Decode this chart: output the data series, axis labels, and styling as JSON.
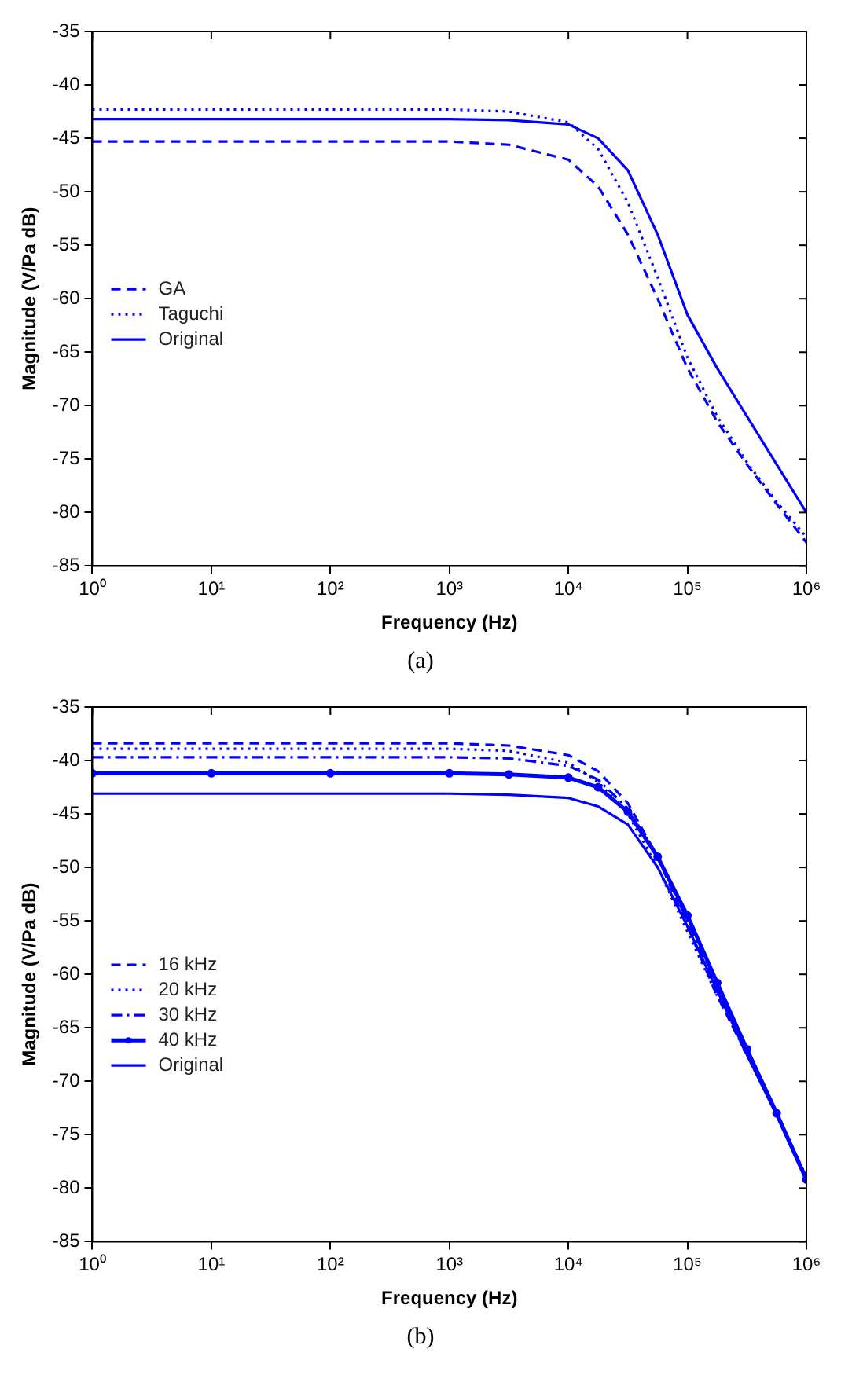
{
  "chart_data": [
    {
      "type": "line",
      "xlabel": "Frequency (Hz)",
      "ylabel": "Magnitude (V/Pa dB)",
      "log": "x",
      "legend": "left",
      "annotations": [
        "(a)"
      ],
      "xlim": [
        1,
        1000000
      ],
      "xticks": [
        {
          "value": 1,
          "label": "10⁰"
        },
        {
          "value": 10,
          "label": "10¹"
        },
        {
          "value": 100,
          "label": "10²"
        },
        {
          "value": 1000,
          "label": "10³"
        },
        {
          "value": 10000,
          "label": "10⁴"
        },
        {
          "value": 100000,
          "label": "10⁵"
        },
        {
          "value": 1000000,
          "label": "10⁶"
        }
      ],
      "ylim": [
        -85,
        -35
      ],
      "yticks": [
        -85,
        -80,
        -75,
        -70,
        -65,
        -60,
        -55,
        -50,
        -45,
        -40,
        -35
      ],
      "x": [
        1,
        10,
        100,
        1000,
        3162,
        10000,
        17783,
        31623,
        56234,
        100000,
        177828,
        316228,
        562341,
        1000000
      ],
      "series": [
        {
          "name": "GA",
          "color": "#0000ff",
          "line_style": "dashed",
          "values": [
            -45.3,
            -45.3,
            -45.3,
            -45.3,
            -45.6,
            -47,
            -49.5,
            -54,
            -60,
            -66.5,
            -71.5,
            -75.5,
            -79.2,
            -82.8
          ]
        },
        {
          "name": "Taguchi",
          "color": "#0000ff",
          "line_style": "dotted",
          "values": [
            -42.3,
            -42.3,
            -42.3,
            -42.3,
            -42.5,
            -43.5,
            -46,
            -51,
            -58,
            -65.5,
            -71,
            -75.3,
            -79,
            -82.3
          ]
        },
        {
          "name": "Original",
          "color": "#0000ff",
          "line_style": "solid",
          "values": [
            -43.2,
            -43.2,
            -43.2,
            -43.2,
            -43.3,
            -43.7,
            -45,
            -48,
            -54,
            -61.5,
            -66.5,
            -71,
            -75.5,
            -80
          ]
        }
      ]
    },
    {
      "type": "line",
      "xlabel": "Frequency (Hz)",
      "ylabel": "Magnitude (V/Pa dB)",
      "log": "x",
      "legend": "left",
      "annotations": [
        "(b)"
      ],
      "xlim": [
        1,
        1000000
      ],
      "xticks": [
        {
          "value": 1,
          "label": "10⁰"
        },
        {
          "value": 10,
          "label": "10¹"
        },
        {
          "value": 100,
          "label": "10²"
        },
        {
          "value": 1000,
          "label": "10³"
        },
        {
          "value": 10000,
          "label": "10⁴"
        },
        {
          "value": 100000,
          "label": "10⁵"
        },
        {
          "value": 1000000,
          "label": "10⁶"
        }
      ],
      "ylim": [
        -85,
        -35
      ],
      "yticks": [
        -85,
        -80,
        -75,
        -70,
        -65,
        -60,
        -55,
        -50,
        -45,
        -40,
        -35
      ],
      "x": [
        1,
        10,
        100,
        1000,
        3162,
        10000,
        17783,
        31623,
        56234,
        100000,
        177828,
        316228,
        562341,
        1000000
      ],
      "series": [
        {
          "name": "16 kHz",
          "color": "#0000ff",
          "line_style": "dashed",
          "values": [
            -38.4,
            -38.4,
            -38.4,
            -38.4,
            -38.6,
            -39.5,
            -41,
            -44,
            -49,
            -55.5,
            -62,
            -67.5,
            -73,
            -79
          ]
        },
        {
          "name": "20 kHz",
          "color": "#0000ff",
          "line_style": "dotted",
          "values": [
            -38.9,
            -38.9,
            -38.9,
            -38.9,
            -39.1,
            -40.2,
            -42,
            -45,
            -50,
            -56,
            -62,
            -67.5,
            -73,
            -79
          ]
        },
        {
          "name": "30 kHz",
          "color": "#0000ff",
          "line_style": "dashdot",
          "values": [
            -39.7,
            -39.7,
            -39.7,
            -39.7,
            -39.8,
            -40.5,
            -41.8,
            -44.5,
            -49,
            -55,
            -61.3,
            -67.2,
            -73,
            -79
          ]
        },
        {
          "name": "40 kHz",
          "color": "#0000ff",
          "line_style": "solid",
          "marker": "circle",
          "values": [
            -41.2,
            -41.2,
            -41.2,
            -41.2,
            -41.3,
            -41.6,
            -42.5,
            -44.8,
            -49,
            -54.5,
            -60.8,
            -67,
            -73,
            -79.2
          ]
        },
        {
          "name": "Original",
          "color": "#0000ff",
          "line_style": "solid",
          "values": [
            -43.1,
            -43.1,
            -43.1,
            -43.1,
            -43.2,
            -43.5,
            -44.3,
            -46,
            -50,
            -55.5,
            -61.5,
            -67.5,
            -73.2,
            -79.3
          ]
        }
      ]
    }
  ]
}
